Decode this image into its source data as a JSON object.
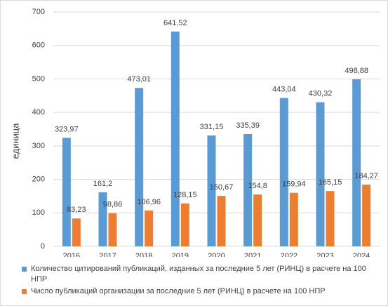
{
  "chart_data": {
    "type": "bar",
    "y_label": "единица",
    "categories": [
      "2016",
      "2017",
      "2018",
      "2019",
      "2020",
      "2021",
      "2022",
      "2023",
      "2024"
    ],
    "series": [
      {
        "name": "Количество цитирований публикаций, изданных за последние 5 лет (РИНЦ) в расчете на 100 НПР",
        "color": "#5b9bd5",
        "values": [
          323.97,
          161.2,
          473.01,
          641.52,
          331.15,
          335.39,
          443.04,
          430.32,
          498.88
        ],
        "value_labels": [
          "323,97",
          "161,2",
          "473,01",
          "641,52",
          "331,15",
          "335,39",
          "443,04",
          "430,32",
          "498,88"
        ]
      },
      {
        "name": "Число публикаций организации за последние 5 лет (РИНЦ) в расчете на 100 НПР",
        "color": "#ed7d31",
        "values": [
          83.23,
          98.86,
          106.96,
          128.15,
          150.67,
          154.8,
          159.94,
          165.15,
          184.27
        ],
        "value_labels": [
          "83,23",
          "98,86",
          "106,96",
          "128,15",
          "150,67",
          "154,8",
          "159,94",
          "165,15",
          "184,27"
        ]
      }
    ],
    "ylim": [
      0,
      700
    ],
    "yticks": [
      0,
      100,
      200,
      300,
      400,
      500,
      600,
      700
    ],
    "grid": true,
    "legend": "bottom"
  }
}
